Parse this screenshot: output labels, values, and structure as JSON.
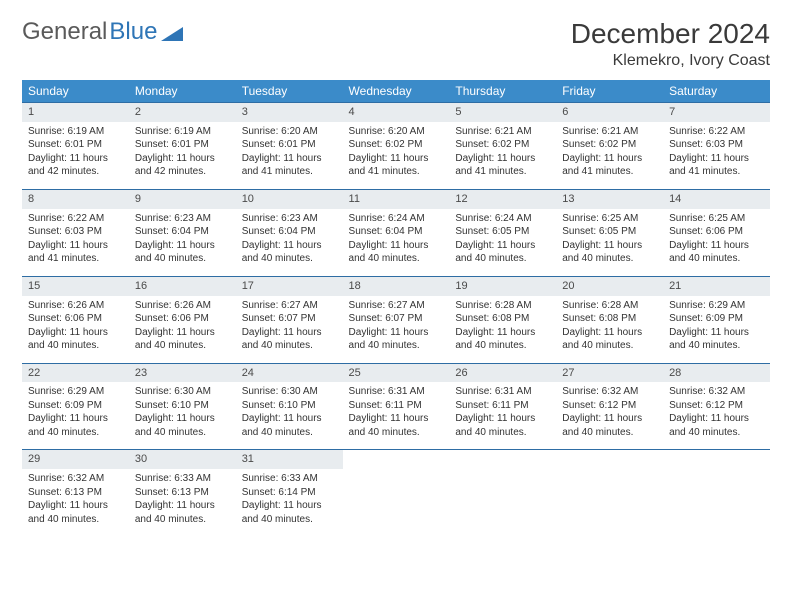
{
  "logo": {
    "text_gray": "General",
    "text_blue": "Blue"
  },
  "title": "December 2024",
  "location": "Klemekro, Ivory Coast",
  "colors": {
    "header_bg": "#3b8bc9",
    "header_text": "#ffffff",
    "row_border": "#2e6da4",
    "daynum_bg": "#e8ecef",
    "body_text": "#333333",
    "logo_gray": "#5a5a5a",
    "logo_blue": "#2e75b6"
  },
  "typography": {
    "title_fontsize": 28,
    "location_fontsize": 16,
    "dayheader_fontsize": 12,
    "cell_fontsize": 10
  },
  "day_headers": [
    "Sunday",
    "Monday",
    "Tuesday",
    "Wednesday",
    "Thursday",
    "Friday",
    "Saturday"
  ],
  "weeks": [
    [
      {
        "n": "1",
        "sr": "6:19 AM",
        "ss": "6:01 PM",
        "dl": "11 hours and 42 minutes."
      },
      {
        "n": "2",
        "sr": "6:19 AM",
        "ss": "6:01 PM",
        "dl": "11 hours and 42 minutes."
      },
      {
        "n": "3",
        "sr": "6:20 AM",
        "ss": "6:01 PM",
        "dl": "11 hours and 41 minutes."
      },
      {
        "n": "4",
        "sr": "6:20 AM",
        "ss": "6:02 PM",
        "dl": "11 hours and 41 minutes."
      },
      {
        "n": "5",
        "sr": "6:21 AM",
        "ss": "6:02 PM",
        "dl": "11 hours and 41 minutes."
      },
      {
        "n": "6",
        "sr": "6:21 AM",
        "ss": "6:02 PM",
        "dl": "11 hours and 41 minutes."
      },
      {
        "n": "7",
        "sr": "6:22 AM",
        "ss": "6:03 PM",
        "dl": "11 hours and 41 minutes."
      }
    ],
    [
      {
        "n": "8",
        "sr": "6:22 AM",
        "ss": "6:03 PM",
        "dl": "11 hours and 41 minutes."
      },
      {
        "n": "9",
        "sr": "6:23 AM",
        "ss": "6:04 PM",
        "dl": "11 hours and 40 minutes."
      },
      {
        "n": "10",
        "sr": "6:23 AM",
        "ss": "6:04 PM",
        "dl": "11 hours and 40 minutes."
      },
      {
        "n": "11",
        "sr": "6:24 AM",
        "ss": "6:04 PM",
        "dl": "11 hours and 40 minutes."
      },
      {
        "n": "12",
        "sr": "6:24 AM",
        "ss": "6:05 PM",
        "dl": "11 hours and 40 minutes."
      },
      {
        "n": "13",
        "sr": "6:25 AM",
        "ss": "6:05 PM",
        "dl": "11 hours and 40 minutes."
      },
      {
        "n": "14",
        "sr": "6:25 AM",
        "ss": "6:06 PM",
        "dl": "11 hours and 40 minutes."
      }
    ],
    [
      {
        "n": "15",
        "sr": "6:26 AM",
        "ss": "6:06 PM",
        "dl": "11 hours and 40 minutes."
      },
      {
        "n": "16",
        "sr": "6:26 AM",
        "ss": "6:06 PM",
        "dl": "11 hours and 40 minutes."
      },
      {
        "n": "17",
        "sr": "6:27 AM",
        "ss": "6:07 PM",
        "dl": "11 hours and 40 minutes."
      },
      {
        "n": "18",
        "sr": "6:27 AM",
        "ss": "6:07 PM",
        "dl": "11 hours and 40 minutes."
      },
      {
        "n": "19",
        "sr": "6:28 AM",
        "ss": "6:08 PM",
        "dl": "11 hours and 40 minutes."
      },
      {
        "n": "20",
        "sr": "6:28 AM",
        "ss": "6:08 PM",
        "dl": "11 hours and 40 minutes."
      },
      {
        "n": "21",
        "sr": "6:29 AM",
        "ss": "6:09 PM",
        "dl": "11 hours and 40 minutes."
      }
    ],
    [
      {
        "n": "22",
        "sr": "6:29 AM",
        "ss": "6:09 PM",
        "dl": "11 hours and 40 minutes."
      },
      {
        "n": "23",
        "sr": "6:30 AM",
        "ss": "6:10 PM",
        "dl": "11 hours and 40 minutes."
      },
      {
        "n": "24",
        "sr": "6:30 AM",
        "ss": "6:10 PM",
        "dl": "11 hours and 40 minutes."
      },
      {
        "n": "25",
        "sr": "6:31 AM",
        "ss": "6:11 PM",
        "dl": "11 hours and 40 minutes."
      },
      {
        "n": "26",
        "sr": "6:31 AM",
        "ss": "6:11 PM",
        "dl": "11 hours and 40 minutes."
      },
      {
        "n": "27",
        "sr": "6:32 AM",
        "ss": "6:12 PM",
        "dl": "11 hours and 40 minutes."
      },
      {
        "n": "28",
        "sr": "6:32 AM",
        "ss": "6:12 PM",
        "dl": "11 hours and 40 minutes."
      }
    ],
    [
      {
        "n": "29",
        "sr": "6:32 AM",
        "ss": "6:13 PM",
        "dl": "11 hours and 40 minutes."
      },
      {
        "n": "30",
        "sr": "6:33 AM",
        "ss": "6:13 PM",
        "dl": "11 hours and 40 minutes."
      },
      {
        "n": "31",
        "sr": "6:33 AM",
        "ss": "6:14 PM",
        "dl": "11 hours and 40 minutes."
      },
      null,
      null,
      null,
      null
    ]
  ],
  "labels": {
    "sunrise": "Sunrise: ",
    "sunset": "Sunset: ",
    "daylight": "Daylight: "
  }
}
